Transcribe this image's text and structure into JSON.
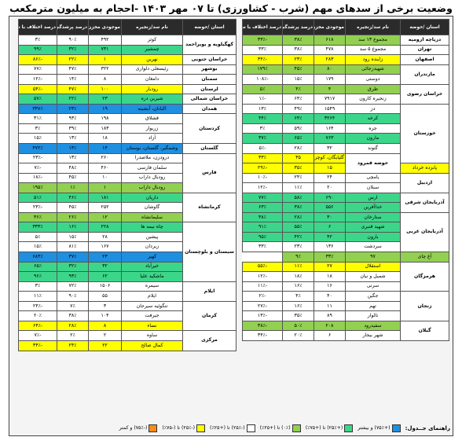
{
  "title": "وضعیت برخی از سدهای مهم (شرب - کشاورزی) تا ۰۷ مهر ۱۴۰۳ -احجام به میلیون مترمکعب",
  "headers": {
    "province": "استان /حوضه",
    "dam": "نام سد/زنجیره",
    "volume": "موجودی مخزن",
    "fill": "درصد پرشدگی",
    "diff": "درصد اختلاف با سال قبل"
  },
  "colors": {
    "yellow": "#ffff00",
    "green": "#92d050",
    "teal": "#3cd68a",
    "blue": "#1f8fe0",
    "white": "#ffffff",
    "header": "#2b2b2b"
  },
  "right_table": [
    {
      "province": "دریاچه ارومیه",
      "span": 1,
      "dam": "مجموع ۱۳ سد",
      "volume": "۶۱۸",
      "fill": "۳۸٪",
      "diff": "-۳۳٪",
      "color": "g"
    },
    {
      "province": "تهران",
      "span": 1,
      "dam": "مجموع ۵ سد",
      "volume": "۴۷۸",
      "fill": "۳۸٪",
      "diff": "۳۳٪",
      "color": "w"
    },
    {
      "province": "اصفهان",
      "span": 1,
      "dam": "زاینده رود",
      "volume": "۲۸۳",
      "fill": "۲۳٪",
      "diff": "-۳۴٪",
      "color": "y"
    },
    {
      "province": "مازندران",
      "span": 2,
      "dam": "شهیدرجائی",
      "volume": "۸۰",
      "fill": "۴۵٪",
      "diff": "۱۷۹٪",
      "color": "g"
    },
    {
      "province": "",
      "span": 0,
      "dam": "دوستی",
      "volume": "۱۷۹",
      "fill": "۱۵٪",
      "diff": "-۱۰۸٪",
      "color": "w"
    },
    {
      "province": "خراسان رضوی",
      "span": 2,
      "dam": "طرق",
      "volume": "۴",
      "fill": "۴٪",
      "diff": "۵٪",
      "color": "g"
    },
    {
      "province": "",
      "span": 0,
      "dam": "زنجیره کارون",
      "volume": "۷۹۱۷",
      "fill": "۶۴٪",
      "diff": "-۱٪",
      "color": "w"
    },
    {
      "province": "خوزستان",
      "span": 6,
      "dam": "دز",
      "volume": "۱۵۴۹",
      "fill": "۴۹٪",
      "diff": "۱۳٪",
      "color": "w"
    },
    {
      "province": "",
      "span": 0,
      "dam": "کرخه",
      "volume": "۳۲۶۴",
      "fill": "۶۴٪",
      "diff": "۴۴٪",
      "color": "t"
    },
    {
      "province": "",
      "span": 0,
      "dam": "جره",
      "volume": "۱۶۴",
      "fill": "۵۹٪",
      "diff": "۳٪",
      "color": "w"
    },
    {
      "province": "",
      "span": 0,
      "dam": "مارون",
      "volume": "۷۶۳",
      "fill": "۶۵٪",
      "diff": "۳۷٪",
      "color": "t"
    },
    {
      "province": "",
      "span": 0,
      "dam": "گتوند",
      "volume": "۳۲",
      "fill": "۲۸٪",
      "diff": "-۵٪",
      "color": "w"
    },
    {
      "province": "حوضه قمرود",
      "span": 2,
      "dam": "گلپایگان، کوچری",
      "volume": "۳۵",
      "fill": "۳۳٪",
      "diff": "-۲۹٪",
      "color": "y"
    },
    {
      "province": "",
      "span": 0,
      "dam": "پانزده خرداد",
      "volume": "۱۵",
      "fill": "۳۵٪",
      "diff": "-۲۹٪",
      "color": "y"
    },
    {
      "province": "اردبیل",
      "span": 2,
      "dam": "یامچی",
      "volume": "۲۴",
      "fill": "۲۴٪",
      "diff": "-۱۰٪",
      "color": "w"
    },
    {
      "province": "",
      "span": 0,
      "dam": "سبلان",
      "volume": "۲۰",
      "fill": "۱۱٪",
      "diff": "-۱۲٪",
      "color": "w"
    },
    {
      "province": "آذربایجان شرقی",
      "span": 2,
      "dam": "ارس",
      "volume": "۶۹۰",
      "fill": "۵۸٪",
      "diff": "۷۷٪",
      "color": "t"
    },
    {
      "province": "",
      "span": 0,
      "dam": "خداآفرین",
      "volume": "۵۵۶",
      "fill": "۳۸٪",
      "diff": "۶۳٪",
      "color": "t"
    },
    {
      "province": "آذربایجان غربی",
      "span": 4,
      "dam": "ستارخان",
      "volume": "۳۰",
      "fill": "۲۸٪",
      "diff": "۳۸٪",
      "color": "t"
    },
    {
      "province": "",
      "span": 0,
      "dam": "شهید قنبری",
      "volume": "۶",
      "fill": "۵۵٪",
      "diff": "۹۱٪",
      "color": "t"
    },
    {
      "province": "",
      "span": 0,
      "dam": "بارون",
      "volume": "۴۲",
      "fill": "۴۲٪",
      "diff": "۹۵٪",
      "color": "t"
    },
    {
      "province": "",
      "span": 0,
      "dam": "سردشت",
      "volume": "۱۳۶",
      "fill": "۲۳٪",
      "diff": "۳۳٪",
      "color": "w"
    },
    {
      "province": "",
      "span": 0,
      "dam": "آغ چای",
      "volume": "۹۷",
      "fill": "۳۳٪",
      "diff": "۹٪",
      "color": "g"
    },
    {
      "province": "هرمزگان",
      "span": 3,
      "dam": "استقلال",
      "volume": "۲۷",
      "fill": "۱۱٪",
      "diff": "-۵۵٪",
      "color": "y"
    },
    {
      "province": "",
      "span": 0,
      "dam": "شمیل و نیان",
      "volume": "۱۸",
      "fill": "۱۸٪",
      "diff": "-۱۲٪",
      "color": "w"
    },
    {
      "province": "",
      "span": 0,
      "dam": "سرنی",
      "volume": "۱۶",
      "fill": "۱۶٪",
      "diff": "-۱۱٪",
      "color": "w"
    },
    {
      "province": "زنجان",
      "span": 3,
      "dam": "جگین",
      "volume": "۴۰",
      "fill": "۴٪",
      "diff": "-۲٪",
      "color": "w"
    },
    {
      "province": "",
      "span": 0,
      "dam": "تهم",
      "volume": "۱۱",
      "fill": "۱۶٪",
      "diff": "-۲۷٪",
      "color": "w"
    },
    {
      "province": "",
      "span": 0,
      "dam": "تالوار",
      "volume": "۸۹",
      "fill": "۳۵٪",
      "diff": "-۱۳٪",
      "color": "w"
    },
    {
      "province": "گیلان",
      "span": 2,
      "dam": "سفیدرود",
      "volume": "۲۰۸",
      "fill": "۵۰٪",
      "diff": "-۳۸٪",
      "color": "g"
    },
    {
      "province": "",
      "span": 0,
      "dam": "شهر بیجار",
      "volume": "۶",
      "fill": "۲۰٪",
      "diff": "-۳۴٪",
      "color": "w"
    }
  ],
  "left_table": [
    {
      "province": "کهگیلویه و بویراحمد",
      "span": 2,
      "dam": "کوثر",
      "volume": "۴۹۲",
      "fill": "۹۰٪",
      "diff": "۳٪",
      "color": "w"
    },
    {
      "province": "",
      "span": 0,
      "dam": "چمشیر",
      "volume": "۷۳۱",
      "fill": "۳۲٪",
      "diff": "۹۹٪",
      "color": "t"
    },
    {
      "province": "خراسان جنوبی",
      "span": 1,
      "dam": "نهرین",
      "volume": "۱",
      "fill": "۲۲٪",
      "diff": "-۸۶٪",
      "color": "y"
    },
    {
      "province": "بوشهر",
      "span": 1,
      "dam": "رئیسعلی دلواری",
      "volume": "۳۲۲",
      "fill": "۴۷٪",
      "diff": "۷۷٪",
      "color": "w"
    },
    {
      "province": "سمنان",
      "span": 1,
      "dam": "دامغان",
      "volume": "۸",
      "fill": "۱۴٪",
      "diff": "-۱۲٪",
      "color": "w"
    },
    {
      "province": "لرستان",
      "span": 1,
      "dam": "رودبار",
      "volume": "۱۰۰",
      "fill": "۴۷٪",
      "diff": "-۵۴٪",
      "color": "y"
    },
    {
      "province": "خراسان شمالی",
      "span": 1,
      "dam": "شیرین دره",
      "volume": "۲۳",
      "fill": "۲۲٪",
      "diff": "۵۷٪",
      "color": "t"
    },
    {
      "province": "همدان",
      "span": 1,
      "dam": "اکباتان، آبشینه",
      "volume": "۱۹",
      "fill": "۲۳٪",
      "diff": "۳۳۷٪",
      "color": "b"
    },
    {
      "province": "کردستان",
      "span": 3,
      "dam": "قشلاق",
      "volume": "۱۹۸",
      "fill": "۹۳٪",
      "diff": "۳۱٪",
      "color": "w"
    },
    {
      "province": "",
      "span": 0,
      "dam": "زریوار",
      "volume": "۱۸۳",
      "fill": "۳۹٪",
      "diff": "۳٪",
      "color": "w"
    },
    {
      "province": "",
      "span": 0,
      "dam": "آزاد",
      "volume": "۱۸",
      "fill": "۱۳٪",
      "diff": "۱۵٪",
      "color": "w"
    },
    {
      "province": "گلستان",
      "span": 1,
      "dam": "وشمگیر، گلستان، بوستان",
      "volume": "۱۴",
      "fill": "۱۳٪",
      "diff": "۴۷۲٪",
      "color": "b"
    },
    {
      "province": "فارس",
      "span": 4,
      "dam": "درودزن، ملاصدرا",
      "volume": "۲۶۰",
      "fill": "۱۳٪",
      "diff": "-۲۳٪",
      "color": "w"
    },
    {
      "province": "",
      "span": 0,
      "dam": "سلمان فارسی",
      "volume": "۴۶۰",
      "fill": "۴۸٪",
      "diff": "-۷٪",
      "color": "w"
    },
    {
      "province": "",
      "span": 0,
      "dam": "رودبال داراب",
      "volume": "۱۰",
      "fill": "۴۵٪",
      "diff": "-۱۸٪",
      "color": "w"
    },
    {
      "province": "",
      "span": 0,
      "dam": "رودبال داراب",
      "volume": "۱",
      "fill": "۱٪",
      "diff": "۱۹۵٪",
      "color": "g"
    },
    {
      "province": "کرمانشاه",
      "span": 3,
      "dam": "داریان",
      "volume": "۱۸۱",
      "fill": "۴۶٪",
      "diff": "۵۱٪",
      "color": "t"
    },
    {
      "province": "",
      "span": 0,
      "dam": "گاوشان",
      "volume": "۲۵۲",
      "fill": "۴۵٪",
      "diff": "-۲۳٪",
      "color": "w"
    },
    {
      "province": "",
      "span": 0,
      "dam": "سلیمانشاه",
      "volume": "۱۲",
      "fill": "۲۶٪",
      "diff": "۳۶٪",
      "color": "g"
    },
    {
      "province": "سیستان و بلوچستان",
      "span": 6,
      "dam": "چاه نیمه ها",
      "volume": "۲۲۸",
      "fill": "۱۶٪",
      "diff": "۳۳۳٪",
      "color": "t"
    },
    {
      "province": "",
      "span": 0,
      "dam": "پیشین",
      "volume": "۲۸",
      "fill": "۱۵٪",
      "diff": "۵٪",
      "color": "w"
    },
    {
      "province": "",
      "span": 0,
      "dam": "زیردان",
      "volume": "۱۶۷",
      "fill": "۸۱٪",
      "diff": "۱۵٪",
      "color": "w"
    },
    {
      "province": "",
      "span": 0,
      "dam": "کهیر",
      "volume": "۲۳",
      "fill": "۳۷٪",
      "diff": "۶۸۳٪",
      "color": "b"
    },
    {
      "province": "",
      "span": 0,
      "dam": "خیرآباد",
      "volume": "۳۲",
      "fill": "۳۲٪",
      "diff": "۶۵٪",
      "color": "t"
    },
    {
      "province": "",
      "span": 0,
      "dam": "ماشکید علیا",
      "volume": "۶۲",
      "fill": "۹۳٪",
      "diff": "۹۶٪",
      "color": "t"
    },
    {
      "province": "ایلام",
      "span": 2,
      "dam": "سیمره",
      "volume": "۱۵۰۶",
      "fill": "۷۲٪",
      "diff": "۳٪",
      "color": "w"
    },
    {
      "province": "",
      "span": 0,
      "dam": "ایلام",
      "volume": "۵۵",
      "fill": "۹۰٪",
      "diff": "۱۱٪",
      "color": "w"
    },
    {
      "province": "کرمان",
      "span": 3,
      "dam": "تنگوئیه سیرجان",
      "volume": "۳",
      "fill": "۷٪",
      "diff": "-۲۴٪",
      "color": "w"
    },
    {
      "province": "",
      "span": 0,
      "dam": "جیرفت",
      "volume": "۱۰۴",
      "fill": "۳۸٪",
      "diff": "۲۰٪",
      "color": "w"
    },
    {
      "province": "",
      "span": 0,
      "dam": "نساء",
      "volume": "۸",
      "fill": "۲۸٪",
      "diff": "-۶۴٪",
      "color": "y"
    },
    {
      "province": "مرکزی",
      "span": 2,
      "dam": "ساوه",
      "volume": "۲",
      "fill": "۲٪",
      "diff": "-۷٪",
      "color": "w"
    },
    {
      "province": "",
      "span": 0,
      "dam": "کمال صالح",
      "volume": "۲۲",
      "fill": "۲۴٪",
      "diff": "-۳۴٪",
      "color": "y"
    }
  ],
  "legend": {
    "title": "راهنمای جــدول:",
    "items": [
      {
        "label": "(+۷۵٪) و بیشتر",
        "color": "#1f8fe0"
      },
      {
        "label": "(+۲۵٪) تا (+۷۵٪)",
        "color": "#3cd68a"
      },
      {
        "label": "(۰٪) تا (+۲۵٪)",
        "color": "#92d050"
      },
      {
        "label": "(-۲۵٪) تا (+۲۵٪)",
        "color": "#ffffff"
      },
      {
        "label": "(-۲۵٪) تا (-۷۵٪)",
        "color": "#ffff00"
      },
      {
        "label": "(-۷۵٪) و کمتر",
        "color": "#ff8c1a"
      }
    ]
  }
}
